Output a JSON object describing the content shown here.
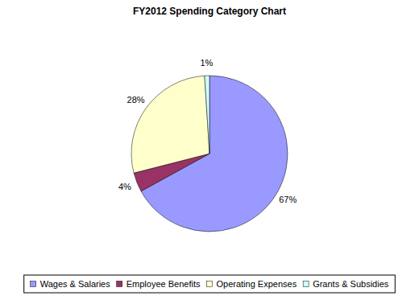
{
  "chart_data": {
    "type": "pie",
    "title": "FY2012 Spending Category Chart",
    "categories": [
      "Wages & Salaries",
      "Employee Benefits",
      "Operating Expenses",
      "Grants & Subsidies"
    ],
    "values": [
      67,
      4,
      28,
      1
    ],
    "value_labels": [
      "67%",
      "4%",
      "28%",
      "1%"
    ],
    "colors": [
      "#9999ff",
      "#993366",
      "#ffffcc",
      "#ccffff"
    ],
    "data_labels": true,
    "legend": "bottom"
  }
}
